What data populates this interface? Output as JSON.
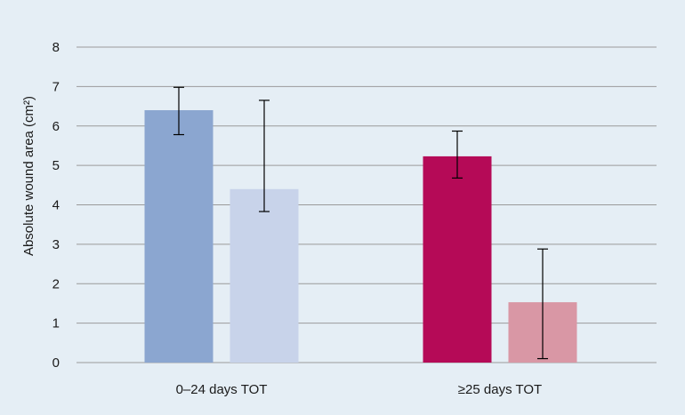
{
  "chart_data": {
    "type": "bar",
    "title": "",
    "xlabel": "",
    "ylabel": "Absolute wound area (cm²)",
    "ylim": [
      0,
      8
    ],
    "yticks": [
      0,
      1,
      2,
      3,
      4,
      5,
      6,
      7,
      8
    ],
    "grid": true,
    "categories": [
      "0–24 days TOT",
      "≥25 days TOT"
    ],
    "bars": [
      {
        "category_index": 0,
        "slot": 0,
        "value": 6.4,
        "err_low": 5.78,
        "err_high": 6.98,
        "color": "#8ba6d0"
      },
      {
        "category_index": 0,
        "slot": 1,
        "value": 4.4,
        "err_low": 3.83,
        "err_high": 6.65,
        "color": "#c8d3ea"
      },
      {
        "category_index": 1,
        "slot": 0,
        "value": 5.23,
        "err_low": 4.68,
        "err_high": 5.87,
        "color": "#b50a57"
      },
      {
        "category_index": 1,
        "slot": 1,
        "value": 1.53,
        "err_low": 0.1,
        "err_high": 2.88,
        "color": "#d997a5"
      }
    ]
  },
  "colors": {
    "background": "#e5eef5",
    "gridline": "#9a9a9a",
    "error_bar": "#000000"
  }
}
